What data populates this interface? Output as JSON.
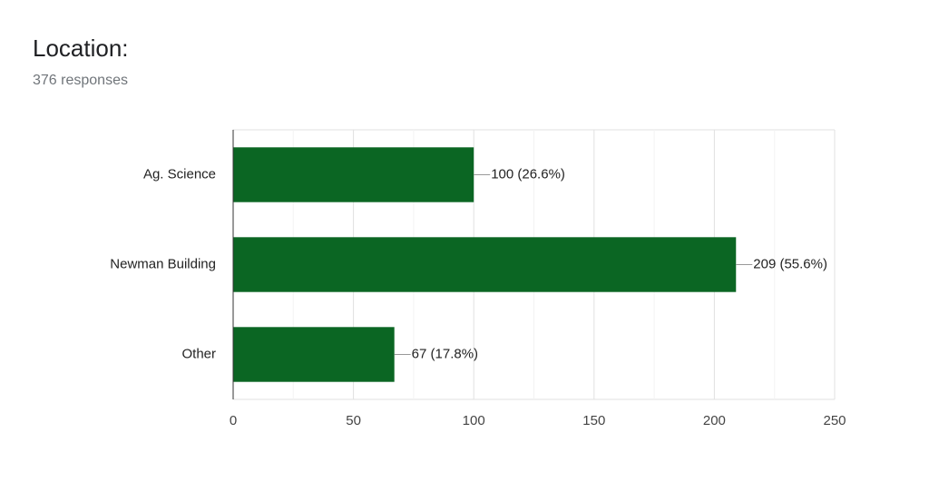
{
  "chart_data": {
    "type": "hbar",
    "title": "Location:",
    "subtitle": "376 responses",
    "categories": [
      "Ag. Science",
      "Newman Building",
      "Other"
    ],
    "values": [
      100,
      209,
      67
    ],
    "value_labels": [
      "100 (26.6%)",
      "209 (55.6%)",
      "67 (17.8%)"
    ],
    "color": "#0b6623",
    "xlim": [
      0,
      250
    ],
    "xticks": [
      0,
      50,
      100,
      150,
      200,
      250
    ],
    "grid": true
  }
}
